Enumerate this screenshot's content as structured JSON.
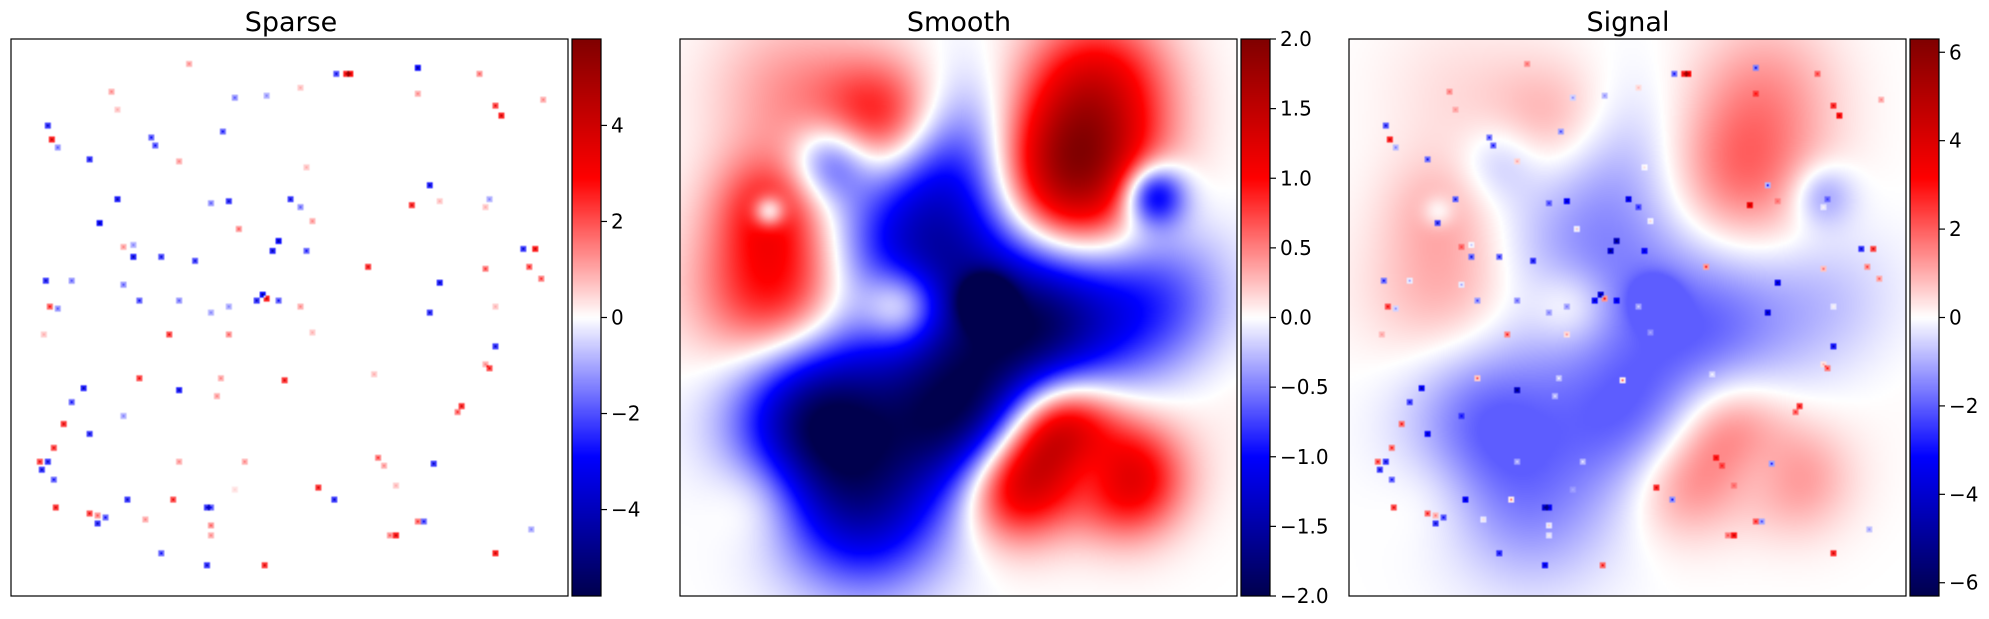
{
  "chart_data": [
    {
      "type": "heatmap",
      "title": "Sparse",
      "colormap": "seismic",
      "colorbar": {
        "range": [
          -5.8,
          5.8
        ],
        "ticks": [
          -4,
          -2,
          0,
          2,
          4
        ],
        "tick_labels": [
          "−4",
          "−2",
          "0",
          "2",
          "4"
        ]
      },
      "background_value": 0,
      "x_range": [
        0,
        1
      ],
      "y_range": [
        0,
        1
      ],
      "points": [
        {
          "x": 0.321,
          "y": 0.044,
          "v": 1.5
        },
        {
          "x": 0.583,
          "y": 0.062,
          "v": -3.5
        },
        {
          "x": 0.6,
          "y": 0.064,
          "v": 4.5
        },
        {
          "x": 0.61,
          "y": 0.064,
          "v": 5
        },
        {
          "x": 0.73,
          "y": 0.05,
          "v": -5
        },
        {
          "x": 0.84,
          "y": 0.062,
          "v": 2
        },
        {
          "x": 0.18,
          "y": 0.096,
          "v": 1.5
        },
        {
          "x": 0.4,
          "y": 0.106,
          "v": -2
        },
        {
          "x": 0.46,
          "y": 0.1,
          "v": -1.5
        },
        {
          "x": 0.52,
          "y": 0.086,
          "v": 1
        },
        {
          "x": 0.73,
          "y": 0.098,
          "v": 1.5
        },
        {
          "x": 0.87,
          "y": 0.12,
          "v": 3.5
        },
        {
          "x": 0.955,
          "y": 0.108,
          "v": 1.5
        },
        {
          "x": 0.88,
          "y": 0.136,
          "v": 4.5
        },
        {
          "x": 0.065,
          "y": 0.155,
          "v": -4
        },
        {
          "x": 0.072,
          "y": 0.18,
          "v": 4.5
        },
        {
          "x": 0.085,
          "y": 0.195,
          "v": -2
        },
        {
          "x": 0.19,
          "y": 0.128,
          "v": 1
        },
        {
          "x": 0.25,
          "y": 0.178,
          "v": -3
        },
        {
          "x": 0.26,
          "y": 0.192,
          "v": -3
        },
        {
          "x": 0.38,
          "y": 0.165,
          "v": -3
        },
        {
          "x": 0.14,
          "y": 0.215,
          "v": -4
        },
        {
          "x": 0.3,
          "y": 0.22,
          "v": 1.5
        },
        {
          "x": 0.53,
          "y": 0.23,
          "v": 1
        },
        {
          "x": 0.75,
          "y": 0.262,
          "v": -4.5
        },
        {
          "x": 0.77,
          "y": 0.29,
          "v": 1
        },
        {
          "x": 0.19,
          "y": 0.286,
          "v": -4.5
        },
        {
          "x": 0.36,
          "y": 0.296,
          "v": -2
        },
        {
          "x": 0.39,
          "y": 0.29,
          "v": -4
        },
        {
          "x": 0.5,
          "y": 0.286,
          "v": -4
        },
        {
          "x": 0.52,
          "y": 0.3,
          "v": -2
        },
        {
          "x": 0.72,
          "y": 0.298,
          "v": 4
        },
        {
          "x": 0.85,
          "y": 0.3,
          "v": 1
        },
        {
          "x": 0.86,
          "y": 0.288,
          "v": -1.5
        },
        {
          "x": 0.16,
          "y": 0.33,
          "v": -5
        },
        {
          "x": 0.41,
          "y": 0.34,
          "v": 2
        },
        {
          "x": 0.54,
          "y": 0.326,
          "v": 1.5
        },
        {
          "x": 0.2,
          "y": 0.374,
          "v": 1.5
        },
        {
          "x": 0.22,
          "y": 0.37,
          "v": -1.5
        },
        {
          "x": 0.22,
          "y": 0.39,
          "v": -4.5
        },
        {
          "x": 0.27,
          "y": 0.39,
          "v": -3.5
        },
        {
          "x": 0.33,
          "y": 0.398,
          "v": -3.5
        },
        {
          "x": 0.47,
          "y": 0.38,
          "v": -4.5
        },
        {
          "x": 0.48,
          "y": 0.364,
          "v": -5
        },
        {
          "x": 0.53,
          "y": 0.38,
          "v": -3
        },
        {
          "x": 0.64,
          "y": 0.408,
          "v": 4
        },
        {
          "x": 0.92,
          "y": 0.375,
          "v": -4
        },
        {
          "x": 0.94,
          "y": 0.375,
          "v": 4.5
        },
        {
          "x": 0.85,
          "y": 0.412,
          "v": 2.5
        },
        {
          "x": 0.93,
          "y": 0.41,
          "v": 3
        },
        {
          "x": 0.95,
          "y": 0.43,
          "v": 2.5
        },
        {
          "x": 0.063,
          "y": 0.435,
          "v": -4
        },
        {
          "x": 0.11,
          "y": 0.435,
          "v": -2
        },
        {
          "x": 0.2,
          "y": 0.44,
          "v": -2
        },
        {
          "x": 0.23,
          "y": 0.47,
          "v": -3
        },
        {
          "x": 0.3,
          "y": 0.47,
          "v": -2
        },
        {
          "x": 0.44,
          "y": 0.47,
          "v": -4
        },
        {
          "x": 0.45,
          "y": 0.46,
          "v": -5
        },
        {
          "x": 0.46,
          "y": 0.466,
          "v": 4.5
        },
        {
          "x": 0.48,
          "y": 0.47,
          "v": -3
        },
        {
          "x": 0.77,
          "y": 0.437,
          "v": -4.5
        },
        {
          "x": 0.07,
          "y": 0.48,
          "v": 3
        },
        {
          "x": 0.085,
          "y": 0.485,
          "v": -2
        },
        {
          "x": 0.36,
          "y": 0.49,
          "v": -1.5
        },
        {
          "x": 0.39,
          "y": 0.48,
          "v": -1.5
        },
        {
          "x": 0.52,
          "y": 0.48,
          "v": 1.5
        },
        {
          "x": 0.75,
          "y": 0.49,
          "v": -4
        },
        {
          "x": 0.87,
          "y": 0.48,
          "v": 1
        },
        {
          "x": 0.285,
          "y": 0.532,
          "v": 3.5
        },
        {
          "x": 0.39,
          "y": 0.53,
          "v": 2
        },
        {
          "x": 0.54,
          "y": 0.528,
          "v": 1
        },
        {
          "x": 0.87,
          "y": 0.55,
          "v": -4
        },
        {
          "x": 0.85,
          "y": 0.585,
          "v": 1.5
        },
        {
          "x": 0.06,
          "y": 0.53,
          "v": 1
        },
        {
          "x": 0.23,
          "y": 0.608,
          "v": 3.5
        },
        {
          "x": 0.375,
          "y": 0.61,
          "v": 1.5
        },
        {
          "x": 0.49,
          "y": 0.614,
          "v": 4
        },
        {
          "x": 0.65,
          "y": 0.6,
          "v": 1
        },
        {
          "x": 0.86,
          "y": 0.59,
          "v": 3.5
        },
        {
          "x": 0.13,
          "y": 0.626,
          "v": -4.5
        },
        {
          "x": 0.3,
          "y": 0.632,
          "v": -4.5
        },
        {
          "x": 0.37,
          "y": 0.64,
          "v": 1.5
        },
        {
          "x": 0.11,
          "y": 0.65,
          "v": -3
        },
        {
          "x": 0.095,
          "y": 0.69,
          "v": 4
        },
        {
          "x": 0.2,
          "y": 0.676,
          "v": -1.5
        },
        {
          "x": 0.8,
          "y": 0.67,
          "v": 2.5
        },
        {
          "x": 0.81,
          "y": 0.66,
          "v": 4
        },
        {
          "x": 0.075,
          "y": 0.735,
          "v": 3.5
        },
        {
          "x": 0.14,
          "y": 0.71,
          "v": -4
        },
        {
          "x": 0.065,
          "y": 0.76,
          "v": -4
        },
        {
          "x": 0.05,
          "y": 0.76,
          "v": 3.5
        },
        {
          "x": 0.055,
          "y": 0.774,
          "v": -4
        },
        {
          "x": 0.075,
          "y": 0.79,
          "v": -3
        },
        {
          "x": 0.3,
          "y": 0.76,
          "v": 1.5
        },
        {
          "x": 0.42,
          "y": 0.76,
          "v": 1.5
        },
        {
          "x": 0.66,
          "y": 0.75,
          "v": 2.5
        },
        {
          "x": 0.67,
          "y": 0.765,
          "v": 1.5
        },
        {
          "x": 0.76,
          "y": 0.762,
          "v": -4
        },
        {
          "x": 0.55,
          "y": 0.805,
          "v": 4
        },
        {
          "x": 0.69,
          "y": 0.8,
          "v": 1
        },
        {
          "x": 0.4,
          "y": 0.81,
          "v": 0.5
        },
        {
          "x": 0.21,
          "y": 0.826,
          "v": -4
        },
        {
          "x": 0.29,
          "y": 0.826,
          "v": 3.5
        },
        {
          "x": 0.58,
          "y": 0.826,
          "v": -4
        },
        {
          "x": 0.35,
          "y": 0.84,
          "v": -4
        },
        {
          "x": 0.36,
          "y": 0.84,
          "v": -3
        },
        {
          "x": 0.08,
          "y": 0.84,
          "v": 4
        },
        {
          "x": 0.14,
          "y": 0.85,
          "v": 3.5
        },
        {
          "x": 0.155,
          "y": 0.856,
          "v": 2
        },
        {
          "x": 0.155,
          "y": 0.868,
          "v": -4
        },
        {
          "x": 0.17,
          "y": 0.86,
          "v": -3
        },
        {
          "x": 0.24,
          "y": 0.864,
          "v": 1.5
        },
        {
          "x": 0.36,
          "y": 0.874,
          "v": 2
        },
        {
          "x": 0.36,
          "y": 0.89,
          "v": 1.5
        },
        {
          "x": 0.68,
          "y": 0.89,
          "v": 2
        },
        {
          "x": 0.69,
          "y": 0.89,
          "v": 4.5
        },
        {
          "x": 0.73,
          "y": 0.866,
          "v": 2.5
        },
        {
          "x": 0.74,
          "y": 0.866,
          "v": -3
        },
        {
          "x": 0.935,
          "y": 0.88,
          "v": -1.5
        },
        {
          "x": 0.87,
          "y": 0.923,
          "v": 4.5
        },
        {
          "x": 0.27,
          "y": 0.923,
          "v": -3
        },
        {
          "x": 0.35,
          "y": 0.945,
          "v": -4
        },
        {
          "x": 0.455,
          "y": 0.945,
          "v": 4
        }
      ]
    },
    {
      "type": "heatmap",
      "title": "Smooth",
      "colormap": "seismic",
      "colorbar": {
        "range": [
          -2.0,
          2.0
        ],
        "ticks": [
          -2.0,
          -1.5,
          -1.0,
          -0.5,
          0.0,
          0.5,
          1.0,
          1.5,
          2.0
        ],
        "tick_labels": [
          "−2.0",
          "−1.5",
          "−1.0",
          "−0.5",
          "0.0",
          "0.5",
          "1.0",
          "1.5",
          "2.0"
        ]
      },
      "x_range": [
        0,
        1
      ],
      "y_range": [
        0,
        1
      ],
      "blobs": [
        {
          "x": 0.7,
          "y": 0.24,
          "v": 1.9,
          "s": 0.1
        },
        {
          "x": 0.75,
          "y": 0.08,
          "v": 1.0,
          "s": 0.09
        },
        {
          "x": 0.37,
          "y": 0.15,
          "v": 1.2,
          "s": 0.08
        },
        {
          "x": 0.18,
          "y": 0.45,
          "v": 1.1,
          "s": 0.1
        },
        {
          "x": 0.16,
          "y": 0.3,
          "v": 0.7,
          "s": 0.07
        },
        {
          "x": 0.4,
          "y": 0.48,
          "v": 1.0,
          "s": 0.05
        },
        {
          "x": 0.68,
          "y": 0.7,
          "v": 1.6,
          "s": 0.07
        },
        {
          "x": 0.6,
          "y": 0.8,
          "v": 1.4,
          "s": 0.07
        },
        {
          "x": 0.8,
          "y": 0.79,
          "v": 1.3,
          "s": 0.07
        },
        {
          "x": 0.2,
          "y": 0.1,
          "v": 0.4,
          "s": 0.1
        },
        {
          "x": 0.9,
          "y": 0.55,
          "v": 0.2,
          "s": 0.12
        },
        {
          "x": 0.15,
          "y": 0.82,
          "v": 0.3,
          "s": 0.06
        },
        {
          "x": 0.45,
          "y": 0.4,
          "v": -1.4,
          "s": 0.13
        },
        {
          "x": 0.65,
          "y": 0.52,
          "v": -1.5,
          "s": 0.1
        },
        {
          "x": 0.85,
          "y": 0.48,
          "v": -0.9,
          "s": 0.1
        },
        {
          "x": 0.48,
          "y": 0.2,
          "v": -0.8,
          "s": 0.1
        },
        {
          "x": 0.25,
          "y": 0.68,
          "v": -1.8,
          "s": 0.1
        },
        {
          "x": 0.5,
          "y": 0.68,
          "v": -1.7,
          "s": 0.1
        },
        {
          "x": 0.33,
          "y": 0.85,
          "v": -1.2,
          "s": 0.1
        },
        {
          "x": 0.27,
          "y": 0.22,
          "v": -0.8,
          "s": 0.05
        },
        {
          "x": 0.85,
          "y": 0.28,
          "v": -1.4,
          "s": 0.04
        },
        {
          "x": 0.74,
          "y": 0.77,
          "v": -0.6,
          "s": 0.05
        },
        {
          "x": 0.16,
          "y": 0.31,
          "v": -0.9,
          "s": 0.02
        },
        {
          "x": 0.55,
          "y": 0.47,
          "v": -1.6,
          "s": 0.03
        }
      ]
    },
    {
      "type": "heatmap",
      "title": "Signal",
      "colormap": "seismic",
      "colorbar": {
        "range": [
          -6.3,
          6.3
        ],
        "ticks": [
          -6,
          -4,
          -2,
          0,
          2,
          4,
          6
        ],
        "tick_labels": [
          "−6",
          "−4",
          "−2",
          "0",
          "2",
          "4",
          "6"
        ]
      },
      "x_range": [
        0,
        1
      ],
      "y_range": [
        0,
        1
      ],
      "composition": "Sparse + Smooth"
    }
  ]
}
